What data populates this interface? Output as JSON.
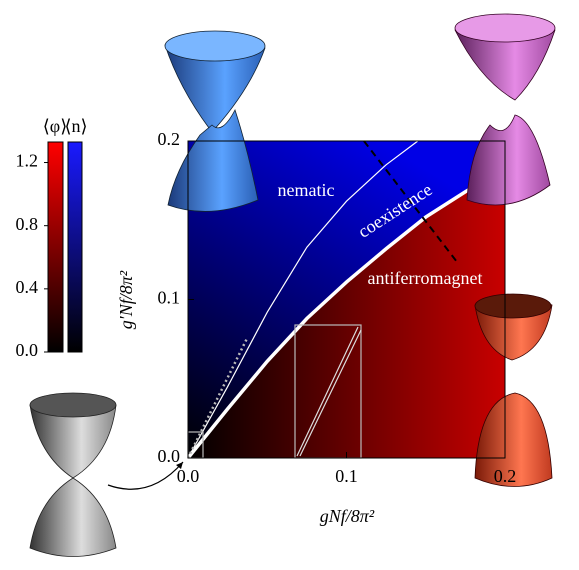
{
  "chart_data": {
    "type": "phase-diagram",
    "xlabel": "gNf/8π²",
    "ylabel": "g′Nf/8π²",
    "xlim": [
      0,
      0.2
    ],
    "ylim": [
      0,
      0.2
    ],
    "xticks": [
      {
        "value": 0,
        "label": "0.0"
      },
      0.1,
      0.2
    ],
    "yticks": [
      {
        "value": 0,
        "label": "0.0"
      },
      0.1,
      0.2
    ],
    "region_labels": [
      "nematic",
      "coexistence",
      "antiferromagnet"
    ],
    "colorbars": [
      {
        "label": "⟨φ⟩",
        "color": "#ff0000"
      },
      {
        "label": "⟨n⟩",
        "color": "#1a1aff"
      }
    ],
    "clim": [
      0,
      1.33
    ],
    "cticks": [
      {
        "value": 0,
        "label": "0.0"
      },
      0.4,
      0.8,
      1.2
    ],
    "lines": [
      {
        "style": "solid-thick",
        "color": "#ffffff",
        "x": [
          0,
          0.025,
          0.05,
          0.075,
          0.1,
          0.125,
          0.15,
          0.175,
          0.2
        ],
        "y": [
          0,
          0.031,
          0.061,
          0.088,
          0.111,
          0.132,
          0.152,
          0.168,
          0.183
        ]
      },
      {
        "style": "solid-thin",
        "color": "#ffffff",
        "x": [
          0,
          0.025,
          0.05,
          0.075,
          0.1,
          0.125,
          0.145
        ],
        "y": [
          0,
          0.045,
          0.092,
          0.133,
          0.162,
          0.185,
          0.2
        ]
      },
      {
        "style": "dashed",
        "color": "#000000",
        "x": [
          0.111,
          0.171
        ],
        "y": [
          0.2,
          0.122
        ]
      },
      {
        "style": "dotted",
        "color": "#bbbbbb",
        "x": [
          0,
          0.037
        ],
        "y": [
          0,
          0.075
        ]
      }
    ]
  }
}
